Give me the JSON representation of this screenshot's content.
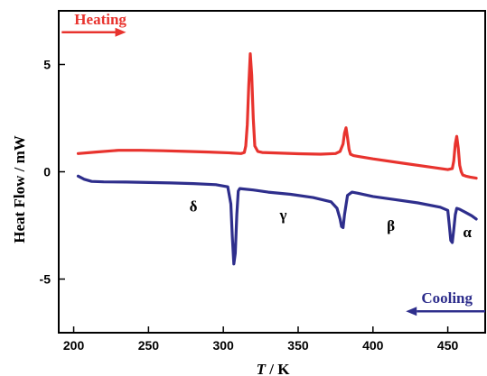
{
  "chart_data": {
    "type": "line",
    "xlabel_italic": "T",
    "xlabel_rest": " / K",
    "ylabel": "Heat Flow / mW",
    "xlim": [
      190,
      475
    ],
    "ylim": [
      -7.5,
      7.5
    ],
    "xticks": [
      200,
      250,
      300,
      350,
      400,
      450
    ],
    "yticks": [
      5,
      0,
      -5
    ],
    "grid": false,
    "series": [
      {
        "color": "#e8332e",
        "x": [
          203,
          215,
          230,
          245,
          260,
          275,
          290,
          305,
          312,
          314,
          315,
          316,
          317,
          318,
          319,
          320,
          321,
          323,
          326,
          335,
          350,
          365,
          375,
          378,
          380,
          381,
          382,
          383,
          384,
          385,
          387,
          390,
          400,
          420,
          440,
          450,
          453,
          454,
          455,
          456,
          457,
          458,
          459,
          460,
          462,
          465,
          469
        ],
        "y": [
          0.85,
          0.92,
          1.0,
          1.0,
          0.98,
          0.95,
          0.92,
          0.88,
          0.85,
          0.9,
          1.2,
          2.2,
          4.0,
          5.5,
          4.5,
          2.5,
          1.2,
          0.95,
          0.9,
          0.88,
          0.84,
          0.82,
          0.85,
          0.95,
          1.3,
          1.8,
          2.05,
          1.6,
          1.05,
          0.82,
          0.75,
          0.72,
          0.6,
          0.4,
          0.2,
          0.1,
          0.15,
          0.5,
          1.3,
          1.65,
          1.1,
          0.3,
          0.0,
          -0.15,
          -0.2,
          -0.25,
          -0.3
        ]
      },
      {
        "color": "#2e2e8c",
        "x": [
          203,
          207,
          212,
          220,
          235,
          250,
          265,
          280,
          295,
          303,
          305,
          306,
          307,
          308,
          309,
          310,
          311,
          313,
          320,
          330,
          345,
          360,
          372,
          376,
          378,
          379,
          380,
          381,
          383,
          386,
          390,
          400,
          415,
          430,
          445,
          450,
          451,
          452,
          453,
          454,
          455,
          456,
          458,
          462,
          466,
          469
        ],
        "y": [
          -0.2,
          -0.35,
          -0.45,
          -0.47,
          -0.48,
          -0.5,
          -0.52,
          -0.55,
          -0.6,
          -0.7,
          -1.5,
          -3.0,
          -4.3,
          -3.8,
          -2.0,
          -0.9,
          -0.78,
          -0.8,
          -0.85,
          -0.95,
          -1.05,
          -1.2,
          -1.4,
          -1.7,
          -2.2,
          -2.55,
          -2.6,
          -2.0,
          -1.1,
          -0.95,
          -1.0,
          -1.15,
          -1.3,
          -1.45,
          -1.65,
          -1.8,
          -2.5,
          -3.2,
          -3.3,
          -2.7,
          -2.0,
          -1.7,
          -1.75,
          -1.9,
          -2.05,
          -2.2
        ]
      }
    ],
    "annotations": [
      {
        "text": "δ",
        "x": 280,
        "y": -1.85
      },
      {
        "text": "γ",
        "x": 340,
        "y": -2.25
      },
      {
        "text": "β",
        "x": 412,
        "y": -2.75
      },
      {
        "text": "α",
        "x": 463,
        "y": -3.05
      }
    ],
    "arrows": [
      {
        "label": "Heating",
        "color": "#e8332e",
        "direction": "right",
        "x_from": 192,
        "x_to": 235,
        "y": 6.5
      },
      {
        "label": "Cooling",
        "color": "#2e2e8c",
        "direction": "left",
        "x_from": 475,
        "x_to": 422,
        "y": -6.5
      }
    ]
  }
}
